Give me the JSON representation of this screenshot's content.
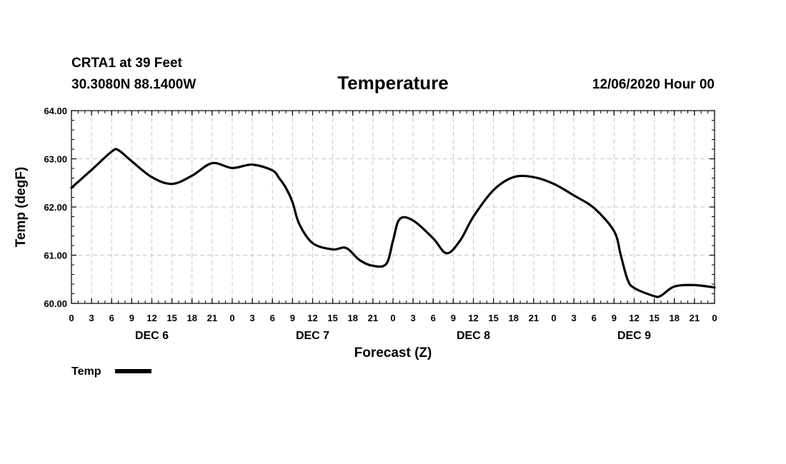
{
  "header": {
    "station": "CRTA1 at 39 Feet",
    "location": "30.3080N 88.1400W",
    "title": "Temperature",
    "run": "12/06/2020 Hour 00"
  },
  "chart_data": {
    "type": "line",
    "ylabel": "Temp (degF)",
    "xlabel": "Forecast (Z)",
    "ylim": [
      60,
      64
    ],
    "yticks": [
      "60.00",
      "61.00",
      "62.00",
      "63.00",
      "64.00"
    ],
    "xlim": [
      0,
      96
    ],
    "xtick_labels": [
      "0",
      "3",
      "6",
      "9",
      "12",
      "15",
      "18",
      "21",
      "0",
      "3",
      "6",
      "9",
      "12",
      "15",
      "18",
      "21",
      "0",
      "3",
      "6",
      "9",
      "12",
      "15",
      "18",
      "21",
      "0",
      "3",
      "6",
      "9",
      "12",
      "15",
      "18",
      "21",
      "0"
    ],
    "day_labels": [
      {
        "label": "DEC 6",
        "hour": 12
      },
      {
        "label": "DEC 7",
        "hour": 36
      },
      {
        "label": "DEC 8",
        "hour": 60
      },
      {
        "label": "DEC 9",
        "hour": 84
      }
    ],
    "grid": true,
    "legend_position": "bottom-left",
    "series": [
      {
        "name": "Temp",
        "color": "#000000",
        "x": [
          0,
          3,
          6,
          7,
          9,
          12,
          15,
          18,
          21,
          24,
          27,
          30,
          31,
          32,
          33,
          34,
          36,
          39,
          41,
          43,
          45,
          47,
          48,
          49,
          51,
          54,
          56,
          58,
          60,
          63,
          66,
          69,
          72,
          75,
          78,
          81,
          82,
          83,
          84,
          87,
          88,
          90,
          93,
          96
        ],
        "y": [
          62.4,
          62.77,
          63.15,
          63.18,
          62.95,
          62.62,
          62.48,
          62.65,
          62.91,
          62.81,
          62.88,
          62.76,
          62.6,
          62.4,
          62.1,
          61.65,
          61.25,
          61.12,
          61.15,
          60.9,
          60.78,
          60.82,
          61.3,
          61.75,
          61.72,
          61.35,
          61.04,
          61.3,
          61.8,
          62.35,
          62.62,
          62.62,
          62.48,
          62.24,
          61.98,
          61.5,
          61.0,
          60.5,
          60.32,
          60.15,
          60.16,
          60.35,
          60.38,
          60.33
        ]
      }
    ]
  }
}
